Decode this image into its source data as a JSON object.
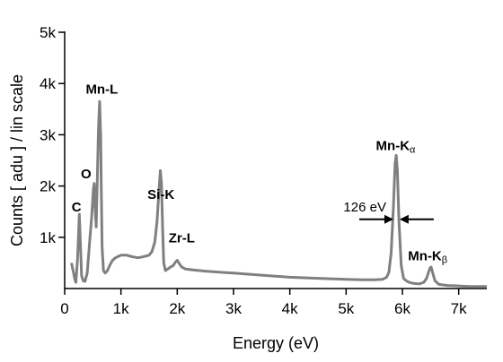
{
  "chart_data": {
    "type": "line",
    "xlabel": "Energy (eV)",
    "ylabel": "Counts [ adu ] / lin scale",
    "xlim": [
      0,
      7500
    ],
    "ylim": [
      0,
      5000
    ],
    "x_ticks": [
      {
        "value": 0,
        "label": "0"
      },
      {
        "value": 1000,
        "label": "1k"
      },
      {
        "value": 2000,
        "label": "2k"
      },
      {
        "value": 3000,
        "label": "3k"
      },
      {
        "value": 4000,
        "label": "4k"
      },
      {
        "value": 5000,
        "label": "5k"
      },
      {
        "value": 6000,
        "label": "6k"
      },
      {
        "value": 7000,
        "label": "7k"
      }
    ],
    "y_ticks": [
      {
        "value": 1000,
        "label": "1k"
      },
      {
        "value": 2000,
        "label": "2k"
      },
      {
        "value": 3000,
        "label": "3k"
      },
      {
        "value": 4000,
        "label": "4k"
      },
      {
        "value": 5000,
        "label": "5k"
      }
    ],
    "grid": false,
    "series": [
      {
        "color": "#808080",
        "x": [
          120,
          150,
          180,
          200,
          230,
          260,
          280,
          300,
          330,
          360,
          400,
          450,
          480,
          510,
          525,
          540,
          560,
          580,
          600,
          620,
          640,
          650,
          665,
          690,
          720,
          760,
          800,
          850,
          900,
          1000,
          1100,
          1200,
          1300,
          1400,
          1500,
          1550,
          1600,
          1640,
          1680,
          1700,
          1720,
          1740,
          1760,
          1790,
          1830,
          1880,
          1930,
          1970,
          2000,
          2040,
          2080,
          2150,
          2300,
          2500,
          3000,
          3500,
          4000,
          4500,
          5000,
          5300,
          5500,
          5650,
          5720,
          5760,
          5800,
          5840,
          5870,
          5890,
          5910,
          5940,
          5980,
          6020,
          6070,
          6120,
          6200,
          6300,
          6380,
          6430,
          6460,
          6490,
          6510,
          6540,
          6580,
          6650,
          6800,
          7000,
          7200,
          7500
        ],
        "y": [
          500,
          350,
          180,
          120,
          600,
          1450,
          900,
          250,
          150,
          140,
          300,
          1000,
          1400,
          1950,
          2050,
          1600,
          1200,
          2100,
          3100,
          3650,
          3000,
          2000,
          800,
          350,
          300,
          350,
          450,
          550,
          600,
          650,
          650,
          620,
          600,
          620,
          650,
          720,
          900,
          1300,
          2000,
          2300,
          2050,
          1200,
          500,
          350,
          380,
          420,
          450,
          520,
          550,
          480,
          420,
          380,
          360,
          340,
          300,
          260,
          220,
          200,
          180,
          170,
          170,
          180,
          220,
          320,
          700,
          1600,
          2450,
          2600,
          2300,
          1300,
          450,
          200,
          150,
          120,
          100,
          90,
          120,
          200,
          300,
          400,
          420,
          300,
          150,
          80,
          60,
          50,
          40,
          40
        ]
      }
    ],
    "annotations": [
      {
        "text": "C",
        "x": 210,
        "y": 1500
      },
      {
        "text": "O",
        "x": 380,
        "y": 2150
      },
      {
        "text": "Mn-L",
        "x": 660,
        "y": 3800
      },
      {
        "text": "Si-K",
        "x": 1710,
        "y": 1750
      },
      {
        "text": "Zr-L",
        "x": 2080,
        "y": 900
      },
      {
        "text": "Mn-K",
        "sub": "α",
        "x": 5880,
        "y": 2700
      },
      {
        "text": "Mn-K",
        "sub": "β",
        "x": 6450,
        "y": 550
      }
    ],
    "fwhm": {
      "label": "126 eV",
      "x_left": 5840,
      "x_right": 5950,
      "y": 1350
    }
  }
}
